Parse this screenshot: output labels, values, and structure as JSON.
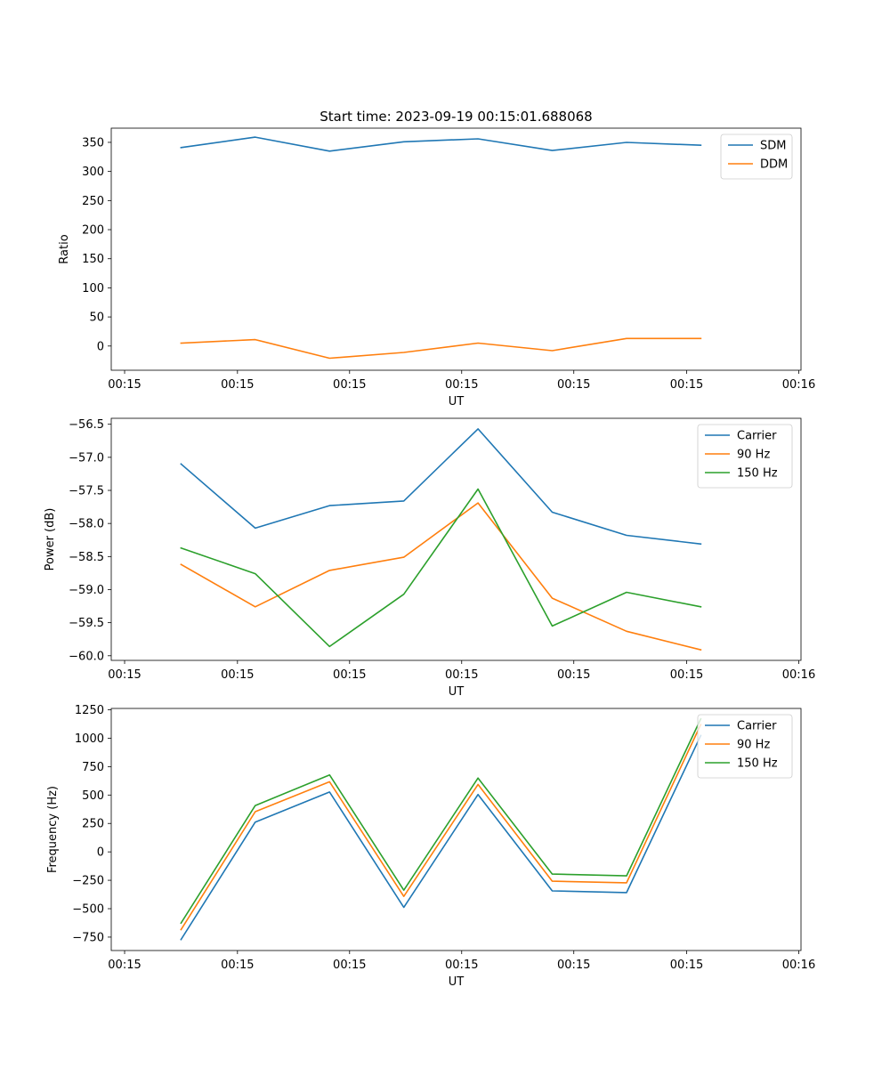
{
  "figure": {
    "suptitle": "Start time: 2023-09-19 00:15:01.688068"
  },
  "chart_data": [
    {
      "type": "line",
      "title": "",
      "xlabel": "UT",
      "ylabel": "Ratio",
      "x": [
        0,
        1,
        2,
        3,
        4,
        5,
        6,
        7
      ],
      "x_tick_positions": [
        -0.76,
        0.76,
        2.27,
        3.78,
        5.29,
        6.81,
        8.32
      ],
      "x_tick_labels": [
        "00:15",
        "00:15",
        "00:15",
        "00:15",
        "00:15",
        "00:15",
        "00:16"
      ],
      "xlim": [
        -0.94,
        8.35
      ],
      "ylim": [
        -41.6,
        374.4
      ],
      "y_ticks": [
        0,
        50,
        100,
        150,
        200,
        250,
        300,
        350
      ],
      "y_tick_labels": [
        "0",
        "50",
        "100",
        "150",
        "200",
        "250",
        "300",
        "350"
      ],
      "legend_position": "upper right",
      "series": [
        {
          "name": "SDM",
          "color": "#1f77b4",
          "values": [
            341,
            359,
            335,
            351,
            356,
            336,
            350,
            345
          ]
        },
        {
          "name": "DDM",
          "color": "#ff7f0e",
          "values": [
            5,
            11,
            -21,
            -11,
            5,
            -8,
            13,
            13
          ]
        }
      ]
    },
    {
      "type": "line",
      "title": "",
      "xlabel": "UT",
      "ylabel": "Power (dB)",
      "x": [
        0,
        1,
        2,
        3,
        4,
        5,
        6,
        7
      ],
      "x_tick_positions": [
        -0.76,
        0.76,
        2.27,
        3.78,
        5.29,
        6.81,
        8.32
      ],
      "x_tick_labels": [
        "00:15",
        "00:15",
        "00:15",
        "00:15",
        "00:15",
        "00:15",
        "00:16"
      ],
      "xlim": [
        -0.94,
        8.35
      ],
      "ylim": [
        -60.07,
        -56.41
      ],
      "y_ticks": [
        -60.0,
        -59.5,
        -59.0,
        -58.5,
        -58.0,
        -57.5,
        -57.0,
        -56.5
      ],
      "y_tick_labels": [
        "−60.0",
        "−59.5",
        "−59.0",
        "−58.5",
        "−58.0",
        "−57.5",
        "−57.0",
        "−56.5"
      ],
      "legend_position": "upper right",
      "series": [
        {
          "name": "Carrier",
          "color": "#1f77b4",
          "values": [
            -57.1,
            -58.07,
            -57.73,
            -57.66,
            -56.57,
            -57.83,
            -58.18,
            -58.31
          ]
        },
        {
          "name": "90 Hz",
          "color": "#ff7f0e",
          "values": [
            -58.62,
            -59.26,
            -58.71,
            -58.51,
            -57.69,
            -59.13,
            -59.63,
            -59.91
          ]
        },
        {
          "name": "150 Hz",
          "color": "#2ca02c",
          "values": [
            -58.37,
            -58.76,
            -59.86,
            -59.07,
            -57.48,
            -59.55,
            -59.04,
            -59.26
          ]
        }
      ]
    },
    {
      "type": "line",
      "title": "",
      "xlabel": "UT",
      "ylabel": "Frequency (Hz)",
      "x": [
        0,
        1,
        2,
        3,
        4,
        5,
        6,
        7
      ],
      "x_tick_positions": [
        -0.76,
        0.76,
        2.27,
        3.78,
        5.29,
        6.81,
        8.32
      ],
      "x_tick_labels": [
        "00:15",
        "00:15",
        "00:15",
        "00:15",
        "00:15",
        "00:15",
        "00:16"
      ],
      "xlim": [
        -0.94,
        8.35
      ],
      "ylim": [
        -868,
        1262
      ],
      "y_ticks": [
        -750,
        -500,
        -250,
        0,
        250,
        500,
        750,
        1000,
        1250
      ],
      "y_tick_labels": [
        "−750",
        "−500",
        "−250",
        "0",
        "250",
        "500",
        "750",
        "1000",
        "1250"
      ],
      "legend_position": "upper right",
      "series": [
        {
          "name": "Carrier",
          "color": "#1f77b4",
          "values": [
            -772,
            262,
            527,
            -488,
            505,
            -343,
            -358,
            1024
          ]
        },
        {
          "name": "90 Hz",
          "color": "#ff7f0e",
          "values": [
            -684,
            354,
            617,
            -392,
            593,
            -258,
            -272,
            1120
          ]
        },
        {
          "name": "150 Hz",
          "color": "#2ca02c",
          "values": [
            -627,
            408,
            677,
            -337,
            650,
            -195,
            -211,
            1170
          ]
        }
      ]
    }
  ]
}
